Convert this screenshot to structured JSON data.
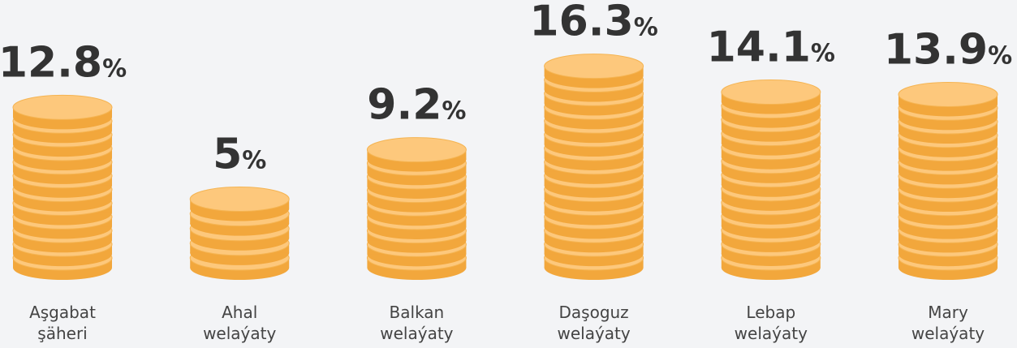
{
  "chart_data": {
    "type": "bar",
    "categories": [
      "Aşgabat şäheri",
      "Ahal welaýaty",
      "Balkan welaýaty",
      "Daşoguz welaýaty",
      "Lebap welaýaty",
      "Mary welaýaty"
    ],
    "values": [
      12.8,
      5,
      9.2,
      16.3,
      14.1,
      13.9
    ],
    "value_labels": [
      "12.8%",
      "5%",
      "9.2%",
      "16.3%",
      "14.1%",
      "13.9%"
    ],
    "color": "#fdc87c"
  }
}
